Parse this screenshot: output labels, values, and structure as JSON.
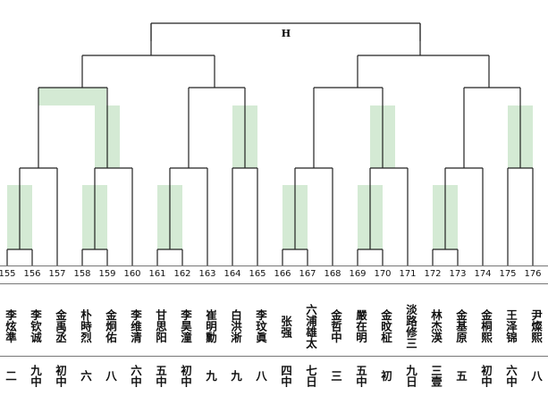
{
  "title": "H",
  "players": [
    {
      "num": "155",
      "name": "李炫準",
      "rank": "二"
    },
    {
      "num": "156",
      "name": "李钦诚",
      "rank": "九中"
    },
    {
      "num": "157",
      "name": "金禹丞",
      "rank": "初中"
    },
    {
      "num": "158",
      "name": "朴時烈",
      "rank": "六"
    },
    {
      "num": "159",
      "name": "金炯佑",
      "rank": "八"
    },
    {
      "num": "160",
      "name": "李维清",
      "rank": "六中"
    },
    {
      "num": "161",
      "name": "甘思阳",
      "rank": "五中"
    },
    {
      "num": "162",
      "name": "李昊潼",
      "rank": "初中"
    },
    {
      "num": "163",
      "name": "崔明勳",
      "rank": "九"
    },
    {
      "num": "164",
      "name": "白洪淅",
      "rank": "九"
    },
    {
      "num": "165",
      "name": "李玟眞",
      "rank": "八"
    },
    {
      "num": "166",
      "name": "张强",
      "rank": "四中"
    },
    {
      "num": "167",
      "name": "六浦雄太",
      "rank": "七日"
    },
    {
      "num": "168",
      "name": "金哲中",
      "rank": "三"
    },
    {
      "num": "169",
      "name": "嚴在明",
      "rank": "五中"
    },
    {
      "num": "170",
      "name": "金旼柾",
      "rank": "初"
    },
    {
      "num": "171",
      "name": "淡路修三",
      "rank": "九日"
    },
    {
      "num": "172",
      "name": "林杰渶",
      "rank": "三壹"
    },
    {
      "num": "173",
      "name": "金基原",
      "rank": "五"
    },
    {
      "num": "174",
      "name": "金桐熙",
      "rank": "初中"
    },
    {
      "num": "175",
      "name": "王泽锦",
      "rank": "六中"
    },
    {
      "num": "176",
      "name": "尹燦熙",
      "rank": "八"
    }
  ]
}
